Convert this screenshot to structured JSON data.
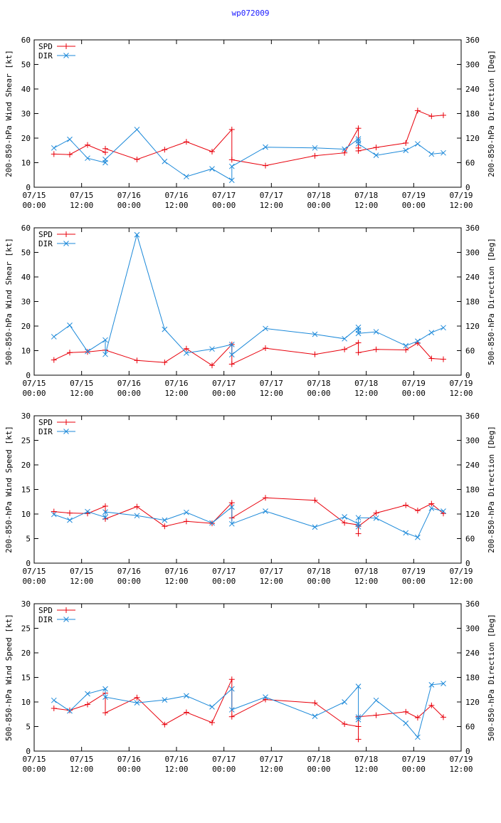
{
  "title": "wp072009",
  "colors": {
    "spd": "#e8000b",
    "dir": "#1c89d9",
    "title": "#1a1aff"
  },
  "legend": {
    "spd": "SPD",
    "dir": "DIR"
  },
  "x_ticks": [
    {
      "date": "07/15",
      "time": "00:00"
    },
    {
      "date": "07/15",
      "time": "12:00"
    },
    {
      "date": "07/16",
      "time": "00:00"
    },
    {
      "date": "07/16",
      "time": "12:00"
    },
    {
      "date": "07/17",
      "time": "00:00"
    },
    {
      "date": "07/17",
      "time": "12:00"
    },
    {
      "date": "07/18",
      "time": "00:00"
    },
    {
      "date": "07/18",
      "time": "12:00"
    },
    {
      "date": "07/19",
      "time": "00:00"
    },
    {
      "date": "07/19",
      "time": "12:00"
    }
  ],
  "chart_data": [
    {
      "type": "line",
      "title": "",
      "ylabel": "200-850-hPa Wind Shear [kt]",
      "y2label": "200-850-hPa Direction [Deg]",
      "xlim": [
        0,
        108
      ],
      "ylim": [
        0,
        60
      ],
      "y2lim": [
        0,
        360
      ],
      "yticks": [
        0,
        10,
        20,
        30,
        40,
        50,
        60
      ],
      "y2ticks": [
        0,
        60,
        120,
        180,
        240,
        300,
        360
      ],
      "series": [
        {
          "name": "SPD",
          "axis": "left",
          "x": [
            5,
            9,
            13.5,
            18,
            18,
            26,
            33,
            38.5,
            45,
            50,
            50,
            58.5,
            71,
            78.5,
            82,
            82,
            82,
            86.5,
            94,
            97,
            100.5,
            103.5
          ],
          "y": [
            13.5,
            13.3,
            17.2,
            14.2,
            15.7,
            11.3,
            15.3,
            18.5,
            14.5,
            23.5,
            11.2,
            8.8,
            12.8,
            14,
            24,
            16,
            14.8,
            16.2,
            18,
            31.2,
            28.9,
            29.3
          ]
        },
        {
          "name": "DIR",
          "axis": "right",
          "x": [
            5,
            9,
            13.5,
            18,
            18,
            26,
            33,
            38.5,
            45,
            50,
            50,
            58.5,
            71,
            78.5,
            82,
            82,
            82,
            86.5,
            94,
            97,
            100.5,
            103.5
          ],
          "y": [
            96,
            117,
            71,
            60,
            68,
            141,
            63,
            26,
            45,
            17,
            51,
            98,
            96,
            93,
            118,
            113,
            106,
            78,
            90,
            106,
            81,
            84
          ]
        }
      ]
    },
    {
      "type": "line",
      "title": "",
      "ylabel": "500-850-hPa Wind Shear [kt]",
      "y2label": "500-850-hPa Direction [Deg]",
      "xlim": [
        0,
        108
      ],
      "ylim": [
        0,
        60
      ],
      "y2lim": [
        0,
        360
      ],
      "yticks": [
        0,
        10,
        20,
        30,
        40,
        50,
        60
      ],
      "y2ticks": [
        0,
        60,
        120,
        180,
        240,
        300,
        360
      ],
      "series": [
        {
          "name": "SPD",
          "axis": "left",
          "x": [
            5,
            9,
            13.5,
            18,
            26,
            33,
            38.5,
            45,
            50,
            50,
            58.5,
            71,
            78.5,
            82,
            82,
            86.5,
            94,
            97,
            100.5,
            103.5
          ],
          "y": [
            6.2,
            9.2,
            9.5,
            10.2,
            6,
            5.2,
            10.8,
            4,
            12.5,
            4.5,
            11,
            8.5,
            10.5,
            13.2,
            9.2,
            10.5,
            10.3,
            13.1,
            6.8,
            6.5
          ]
        },
        {
          "name": "DIR",
          "axis": "right",
          "x": [
            5,
            9,
            13.5,
            18,
            18,
            26,
            33,
            38.5,
            45,
            50,
            50,
            58.5,
            71,
            78.5,
            82,
            82,
            82,
            86.5,
            94,
            97,
            100.5,
            103.5
          ],
          "y": [
            94,
            122,
            58,
            86,
            51,
            343,
            112,
            54,
            64,
            75,
            50,
            114,
            100,
            89,
            117,
            110,
            102,
            106,
            72,
            83,
            104,
            116
          ]
        }
      ]
    },
    {
      "type": "line",
      "title": "",
      "ylabel": "200-850-hPa Wind Speed [kt]",
      "y2label": "200-850-hPa Direction [Deg]",
      "xlim": [
        0,
        108
      ],
      "ylim": [
        0,
        30
      ],
      "y2lim": [
        0,
        360
      ],
      "yticks": [
        0,
        5,
        10,
        15,
        20,
        25,
        30
      ],
      "y2ticks": [
        0,
        60,
        120,
        180,
        240,
        300,
        360
      ],
      "series": [
        {
          "name": "SPD",
          "axis": "left",
          "x": [
            5,
            9,
            13.5,
            18,
            18,
            26,
            33,
            38.5,
            45,
            50,
            50,
            58.5,
            71,
            78.5,
            82,
            82,
            82,
            86.5,
            94,
            97,
            100.5,
            103.5
          ],
          "y": [
            10.5,
            10.2,
            10.1,
            11.6,
            9,
            11.5,
            7.5,
            8.5,
            8.1,
            12.3,
            9.2,
            13.3,
            12.8,
            8.2,
            7.8,
            6,
            7.5,
            10.2,
            11.8,
            10.7,
            12.1,
            10.1
          ]
        },
        {
          "name": "DIR",
          "axis": "right",
          "x": [
            5,
            9,
            13.5,
            18,
            18,
            26,
            33,
            38.5,
            45,
            50,
            50,
            58.5,
            71,
            78.5,
            82,
            82,
            82,
            86.5,
            94,
            97,
            100.5,
            103.5
          ],
          "y": [
            119,
            105,
            126,
            112,
            125,
            116,
            105,
            124,
            98,
            137,
            96,
            127,
            88,
            113,
            96,
            89,
            111,
            110,
            74,
            63,
            134,
            127
          ]
        }
      ]
    },
    {
      "type": "line",
      "title": "",
      "ylabel": "500-850-hPa Wind Speed [kt]",
      "y2label": "500-850-hPa Direction [Deg]",
      "xlim": [
        0,
        108
      ],
      "ylim": [
        0,
        30
      ],
      "y2lim": [
        0,
        360
      ],
      "yticks": [
        0,
        5,
        10,
        15,
        20,
        25,
        30
      ],
      "y2ticks": [
        0,
        60,
        120,
        180,
        240,
        300,
        360
      ],
      "series": [
        {
          "name": "SPD",
          "axis": "left",
          "x": [
            5,
            9,
            13.5,
            18,
            18,
            26,
            33,
            38.5,
            45,
            50,
            50,
            58.5,
            71,
            78.5,
            82,
            82,
            82,
            86.5,
            94,
            97,
            100.5,
            103.5
          ],
          "y": [
            8.7,
            8.3,
            9.5,
            11.8,
            7.8,
            10.9,
            5.4,
            7.9,
            5.8,
            14.6,
            7,
            10.5,
            9.8,
            5.5,
            5,
            2.4,
            7,
            7.3,
            8,
            6.8,
            9.3,
            6.9
          ]
        },
        {
          "name": "DIR",
          "axis": "right",
          "x": [
            5,
            9,
            13.5,
            18,
            18,
            26,
            33,
            38.5,
            45,
            50,
            50,
            58.5,
            71,
            78.5,
            82,
            82,
            82,
            86.5,
            94,
            97,
            100.5,
            103.5
          ],
          "y": [
            124,
            98,
            140,
            152,
            132,
            118,
            125,
            135,
            108,
            152,
            101,
            132,
            85,
            120,
            158,
            83,
            77,
            124,
            68,
            34,
            162,
            165
          ]
        }
      ]
    }
  ]
}
